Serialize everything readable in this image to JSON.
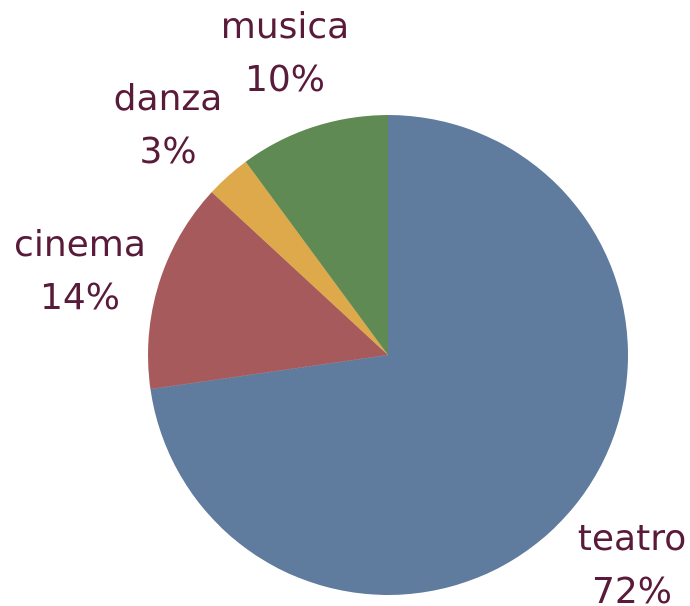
{
  "chart_data": {
    "type": "pie",
    "categories": [
      "teatro",
      "cinema",
      "danza",
      "musica"
    ],
    "values": [
      72,
      14,
      3,
      10
    ],
    "value_labels": [
      "72%",
      "14%",
      "3%",
      "10%"
    ],
    "colors": [
      "#5f7b9d",
      "#a65a5b",
      "#dea94b",
      "#5f8a53"
    ]
  }
}
